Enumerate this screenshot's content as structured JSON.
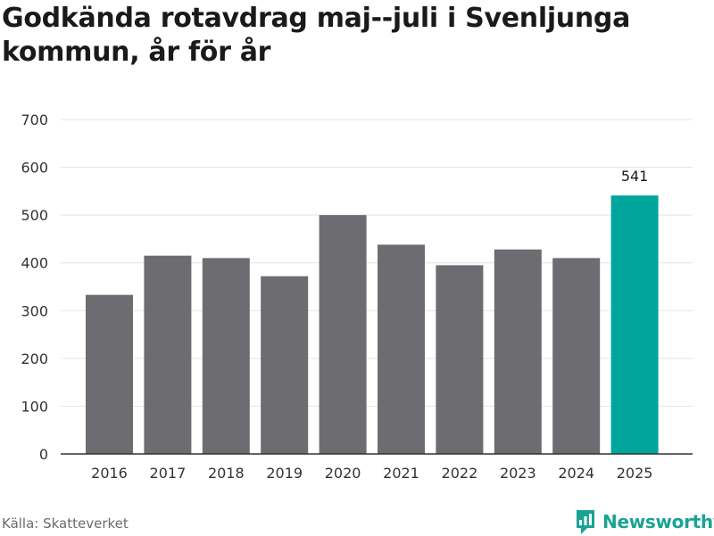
{
  "title": "Godkända rotavdrag maj--juli i Svenljunga kommun, år för år",
  "source": "Källa: Skatteverket",
  "brand": {
    "name": "Newsworthy",
    "icon": "newsworthy-logo-icon",
    "color": "#1aa394"
  },
  "colors": {
    "bar": "#6d6c71",
    "highlight": "#00a69c",
    "grid": "#e3e3e3",
    "axis": "#333333",
    "text": "#333333"
  },
  "chart_data": {
    "type": "bar",
    "categories": [
      "2016",
      "2017",
      "2018",
      "2019",
      "2020",
      "2021",
      "2022",
      "2023",
      "2024",
      "2025"
    ],
    "values": [
      333,
      415,
      410,
      372,
      500,
      438,
      395,
      428,
      410,
      541
    ],
    "highlight_index": 9,
    "data_labels": [
      {
        "index": 9,
        "text": "541"
      }
    ],
    "yticks": [
      0,
      100,
      200,
      300,
      400,
      500,
      600,
      700
    ],
    "ylim": [
      0,
      700
    ],
    "grid": true,
    "xlabel": "",
    "ylabel": ""
  }
}
